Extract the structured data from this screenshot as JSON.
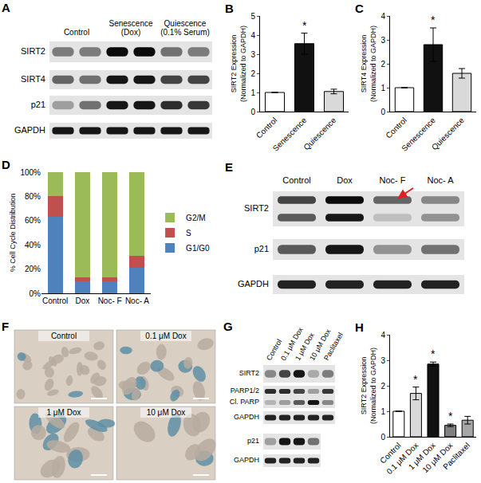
{
  "chart_data": [
    {
      "panel": "B",
      "type": "bar",
      "ylabel": "SIRT2 Expression\n(Normalized to GAPDH)",
      "categories": [
        "Control",
        "Senescence",
        "Quiescence"
      ],
      "values": [
        1,
        3.55,
        1.05
      ],
      "errors": [
        0,
        0.55,
        0.12
      ],
      "colors": [
        "#ffffff",
        "#111111",
        "#d9d9d9"
      ],
      "ylim": [
        0,
        5
      ],
      "yticks": [
        0,
        1,
        2,
        3,
        4,
        5
      ],
      "annotations": [
        {
          "category": "Senescence",
          "text": "*"
        }
      ]
    },
    {
      "panel": "C",
      "type": "bar",
      "ylabel": "SIRT4 Expression\n(Normalized to GAPDH)",
      "categories": [
        "Control",
        "Senescence",
        "Quiescence"
      ],
      "values": [
        1,
        2.8,
        1.6
      ],
      "errors": [
        0,
        0.7,
        0.2
      ],
      "colors": [
        "#ffffff",
        "#111111",
        "#d9d9d9"
      ],
      "ylim": [
        0,
        4
      ],
      "yticks": [
        0,
        1,
        2,
        3,
        4
      ],
      "annotations": [
        {
          "category": "Senescence",
          "text": "*"
        }
      ]
    },
    {
      "panel": "D",
      "type": "bar",
      "stacked": true,
      "legend": "right",
      "ylabel": "% Cell Cycle Distribution",
      "categories": [
        "Control",
        "Dox",
        "Noc- F",
        "Noc- A"
      ],
      "series": [
        {
          "name": "G1/G0",
          "color": "#4f81bd",
          "values": [
            63,
            10,
            10,
            21
          ]
        },
        {
          "name": "S",
          "color": "#c0504d",
          "values": [
            17,
            3,
            3,
            10
          ]
        },
        {
          "name": "G2/M",
          "color": "#9bbb59",
          "values": [
            20,
            87,
            87,
            69
          ]
        }
      ],
      "ylim": [
        0,
        100
      ],
      "yticks": [
        {
          "value": 0,
          "label": "0%"
        },
        {
          "value": 20,
          "label": "20%"
        },
        {
          "value": 40,
          "label": "40%"
        },
        {
          "value": 60,
          "label": "60%"
        },
        {
          "value": 80,
          "label": "80%"
        },
        {
          "value": 100,
          "label": "100%"
        }
      ]
    },
    {
      "panel": "H",
      "type": "bar",
      "ylabel": "SIRT2 Expression\n(Normalized to GAPDH)",
      "categories": [
        "Control",
        "0.1 μM Dox",
        "1 μM Dox",
        "10 μM Dox",
        "Paclitaxel"
      ],
      "values": [
        1,
        1.7,
        2.85,
        0.45,
        0.65
      ],
      "errors": [
        0,
        0.25,
        0.08,
        0.05,
        0.15
      ],
      "colors": [
        "#ffffff",
        "#d9d9d9",
        "#111111",
        "#7f7f7f",
        "#a6a6a6"
      ],
      "ylim": [
        0,
        4
      ],
      "yticks": [
        0,
        1,
        2,
        3,
        4
      ],
      "annotations": [
        {
          "category": "0.1 μM Dox",
          "text": "*"
        },
        {
          "category": "1 μM Dox",
          "text": "*"
        },
        {
          "category": "10 μM Dox",
          "text": "*"
        }
      ]
    }
  ],
  "blots": [
    {
      "panel": "A",
      "columns": [
        {
          "label": "Control",
          "lanes": 2
        },
        {
          "label": "Senescence (Dox)",
          "lanes": 2
        },
        {
          "label": "Quiescence (0.1% Serum)",
          "lanes": 2
        }
      ],
      "groups": [
        {
          "rows": [
            {
              "label": "SIRT2",
              "bands": [
                [
                  0.45,
                  0.45,
                  0.95,
                  0.95,
                  0.5,
                  0.45
                ]
              ]
            },
            {
              "label": "SIRT4",
              "bands": [
                [
                  0.55,
                  0.5,
                  0.9,
                  0.9,
                  0.7,
                  0.7
                ]
              ]
            },
            {
              "label": "p21",
              "bands": [
                [
                  0.3,
                  0.5,
                  0.9,
                  0.9,
                  0.8,
                  0.75
                ]
              ]
            },
            {
              "label": "GAPDH",
              "bands": [
                [
                  0.9,
                  0.9,
                  0.9,
                  0.9,
                  0.9,
                  0.9
                ]
              ]
            }
          ]
        }
      ]
    },
    {
      "panel": "E",
      "columns": [
        {
          "label": "Control",
          "lanes": 1
        },
        {
          "label": "Dox",
          "lanes": 1
        },
        {
          "label": "Noc- F",
          "lanes": 1
        },
        {
          "label": "Noc- A",
          "lanes": 1
        }
      ],
      "groups": [
        {
          "rows": [
            {
              "label": "SIRT2",
              "bands": [
                [
                  0.7,
                  0.95,
                  0.55,
                  0.4
                ],
                [
                  0.6,
                  0.9,
                  0.15,
                  0.35
                ]
              ]
            },
            {
              "label": "p21",
              "bands": [
                [
                  0.6,
                  0.9,
                  0.35,
                  0.5
                ]
              ]
            },
            {
              "label": "GAPDH",
              "bands": [
                [
                  0.85,
                  0.85,
                  0.85,
                  0.85
                ]
              ]
            }
          ]
        }
      ]
    },
    {
      "panel": "G",
      "columns": [
        {
          "label": "Control",
          "lanes": 1
        },
        {
          "label": "0.1 μM Dox",
          "lanes": 1
        },
        {
          "label": "1 μM Dox",
          "lanes": 1
        },
        {
          "label": "10 μM Dox",
          "lanes": 1
        },
        {
          "label": "Paclitaxel",
          "lanes": 1
        }
      ],
      "groups": [
        {
          "rows": [
            {
              "label": "SIRT2",
              "bands": [
                [
                  0.4,
                  0.7,
                  0.9,
                  0.25,
                  0.45
                ]
              ]
            },
            {
              "labels": [
                "PARP1/2",
                "Cl. PARP"
              ],
              "bands": [
                [
                  0.8,
                  0.8,
                  0.7,
                  0.3,
                  0.75
                ],
                [
                  0.2,
                  0.3,
                  0.6,
                  0.9,
                  0.4
                ]
              ]
            },
            {
              "label": "GAPDH",
              "bands": [
                [
                  0.85,
                  0.85,
                  0.85,
                  0.85,
                  0.85
                ]
              ]
            }
          ]
        },
        {
          "rows": [
            {
              "label": "p21",
              "bands": [
                [
                  0.3,
                  0.9,
                  0.9,
                  0.5
                ]
              ]
            },
            {
              "label": "GAPDH",
              "bands": [
                [
                  0.85,
                  0.85,
                  0.85,
                  0.85
                ]
              ]
            }
          ]
        }
      ]
    }
  ],
  "micrographs": {
    "panel": "F",
    "images": [
      {
        "label": "Control"
      },
      {
        "label": "0.1 μM Dox"
      },
      {
        "label": "1 μM Dox"
      },
      {
        "label": "10 μM Dox"
      }
    ]
  }
}
